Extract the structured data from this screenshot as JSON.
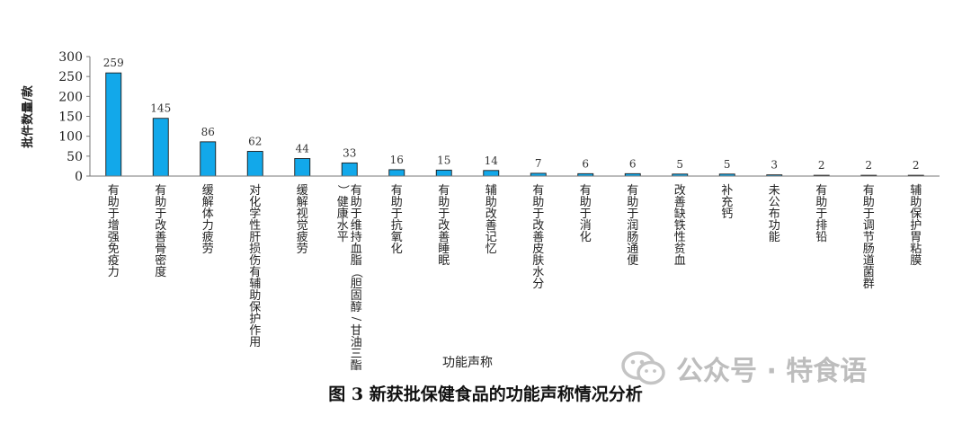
{
  "chart_data": {
    "type": "bar",
    "categories": [
      "有助于增强免疫力",
      "有助于改善骨密度",
      "缓解体力疲劳",
      "对化学性肝损伤有辅助保护作用",
      "缓解视觉疲劳",
      "有助于维持血脂（胆固醇/甘油三酯）健康水平",
      "有助于抗氧化",
      "有助于改善睡眠",
      "辅助改善记忆",
      "有助于改善皮肤水分",
      "有助于消化",
      "有助于润肠通便",
      "改善缺铁性贫血",
      "补充钙",
      "未公布功能",
      "有助于排铅",
      "有助于调节肠道菌群",
      "辅助保护胃粘膜"
    ],
    "values": [
      259,
      145,
      86,
      62,
      44,
      33,
      16,
      15,
      14,
      7,
      6,
      6,
      5,
      5,
      3,
      2,
      2,
      2
    ],
    "data_labels": [
      "259",
      "145",
      "86",
      "62",
      "44",
      "33",
      "16",
      "15",
      "14",
      "7",
      "6",
      "6",
      "5",
      "5",
      "3",
      "2",
      "2",
      "2"
    ],
    "xlabel": "功能声称",
    "ylabel": "批件数量/款",
    "ylim": [
      0,
      300
    ],
    "yticks": [
      "0",
      "50",
      "100",
      "150",
      "200",
      "250",
      "300"
    ],
    "grid": false,
    "legend": "none",
    "bar_color": "#12a8ea",
    "bar_edge_color": "#1b1b1b"
  },
  "caption": "图 3  新获批保健食品的功能声称情况分析",
  "watermark": {
    "text": "公众号 · 特食语",
    "icon": "wechat-icon"
  }
}
